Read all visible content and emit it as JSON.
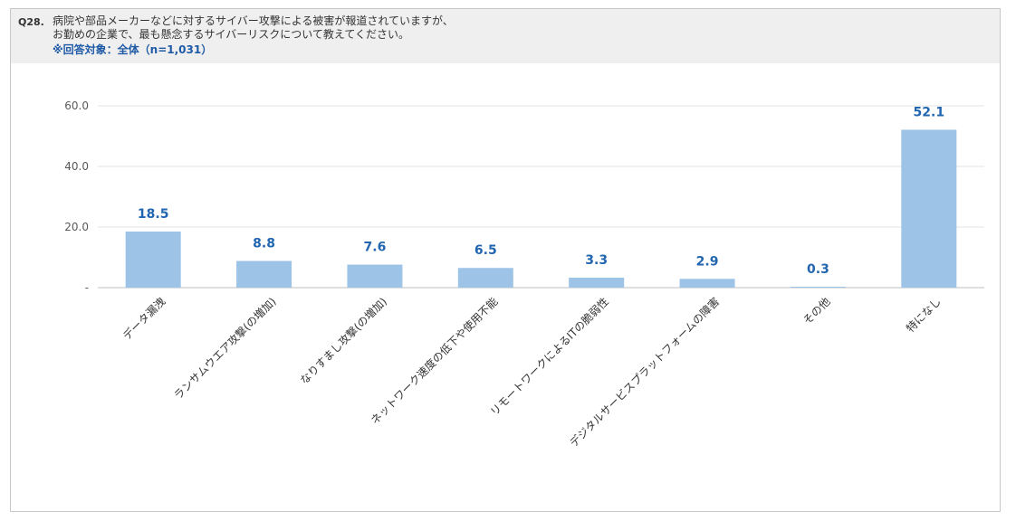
{
  "question": {
    "number": "Q28.",
    "line1": "病院や部品メーカーなどに対するサイバー攻撃による被害が報道されていますが、",
    "line2": "お勤めの企業で、最も懸念するサイバーリスクについて教えてください。",
    "target": "※回答対象：全体（n=1,031）"
  },
  "chart_data": {
    "type": "bar",
    "categories": [
      "データ漏洩",
      "ランサムウエア攻撃(の増加)",
      "なりすまし攻撃(の増加)",
      "ネットワーク速度の低下や使用不能",
      "リモートワークによるITの脆弱性",
      "デジタルサービスプラットフォームの障害",
      "その他",
      "特になし"
    ],
    "values": [
      18.5,
      8.8,
      7.6,
      6.5,
      3.3,
      2.9,
      0.3,
      52.1
    ],
    "value_labels": [
      "18.5",
      "8.8",
      "7.6",
      "6.5",
      "3.3",
      "2.9",
      "0.3",
      "52.1"
    ],
    "yticks": [
      "-",
      "20.0",
      "40.0",
      "60.0"
    ],
    "ytick_values": [
      0,
      20,
      40,
      60
    ],
    "ylim": [
      0,
      60
    ],
    "grid": true,
    "bar_color": "#9dc3e6",
    "label_color": "#2266b0"
  }
}
